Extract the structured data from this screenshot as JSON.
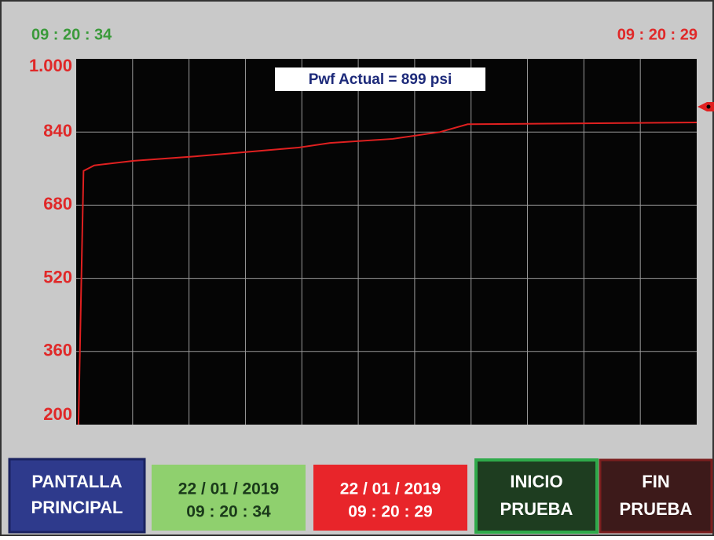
{
  "header": {
    "time_left": "09 : 20 : 34",
    "time_right": "09 : 20 : 29"
  },
  "chart_data": {
    "type": "line",
    "annotation": "Pwf Actual =  899 psi",
    "x": [
      0.04,
      0.13,
      0.32,
      1.02,
      2.13,
      3.94,
      4.5,
      5.61,
      6.45,
      6.94,
      11
    ],
    "series": [
      {
        "name": "Pwf",
        "color": "#e02020",
        "values": [
          200,
          755,
          767,
          777,
          787,
          806,
          816,
          825,
          840,
          857,
          861
        ]
      }
    ],
    "xlim": [
      0,
      11
    ],
    "ylim": [
      200,
      1000
    ],
    "yticks": [
      200,
      360,
      520,
      680,
      840,
      {
        "value": 1000,
        "label": "1.000"
      }
    ],
    "grid": true
  },
  "buttons": {
    "main": {
      "line1": "PANTALLA",
      "line2": "PRINCIPAL"
    },
    "start_info": {
      "date": "22 / 01 / 2019",
      "time": "09 : 20 : 34"
    },
    "end_info": {
      "date": "22 / 01 / 2019",
      "time": "09 : 20 : 29"
    },
    "start": {
      "line1": "INICIO",
      "line2": "PRUEBA"
    },
    "end": {
      "line1": "FIN",
      "line2": "PRUEBA"
    }
  }
}
